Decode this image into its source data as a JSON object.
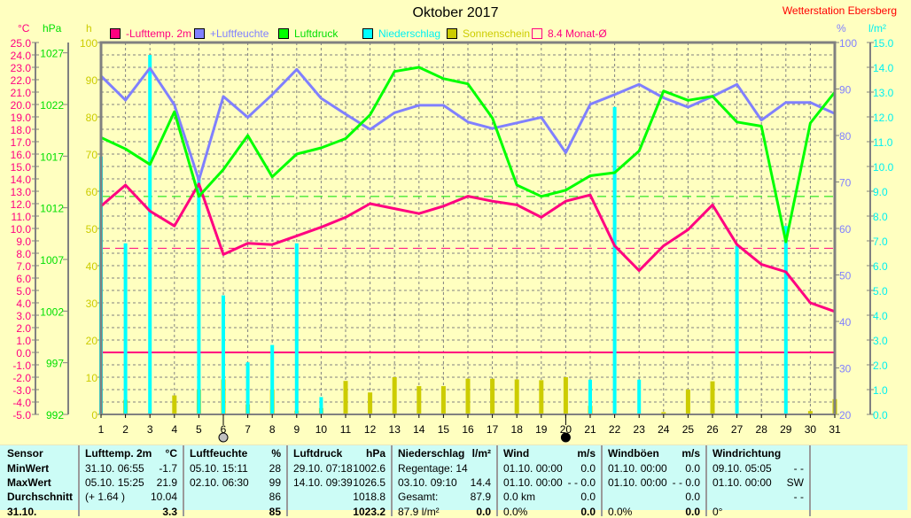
{
  "header": {
    "title": "Oktober 2017",
    "station": "Wetterstation Ebersberg"
  },
  "legend": [
    {
      "label": "-Lufttemp. 2m",
      "color": "#ff0080",
      "box": "#ff0080"
    },
    {
      "label": "+Luftfeuchte",
      "color": "#8080ff",
      "box": "#8080ff"
    },
    {
      "label": "Luftdruck",
      "color": "#00e000",
      "box": "#00ff00"
    },
    {
      "label": "Niederschlag",
      "color": "#00f0f0",
      "box": "#00ffff"
    },
    {
      "label": "Sonnenschein",
      "color": "#cccc00",
      "box": "#cccc00"
    },
    {
      "label": "8.4 Monat-Ø",
      "color": "#ff0080",
      "box": "none"
    }
  ],
  "chart_data": {
    "type": "line",
    "title": "Oktober 2017",
    "x": [
      1,
      2,
      3,
      4,
      5,
      6,
      7,
      8,
      9,
      10,
      11,
      12,
      13,
      14,
      15,
      16,
      17,
      18,
      19,
      20,
      21,
      22,
      23,
      24,
      25,
      26,
      27,
      28,
      29,
      30,
      31
    ],
    "axes": {
      "temp": {
        "label": "°C",
        "range": [
          -5,
          25
        ],
        "ticks": [
          "-5.0",
          "-4.0",
          "-3.0",
          "-2.0",
          "-1.0",
          "0.0",
          "1.0",
          "2.0",
          "3.0",
          "4.0",
          "5.0",
          "6.0",
          "7.0",
          "8.0",
          "9.0",
          "10.0",
          "11.0",
          "12.0",
          "13.0",
          "14.0",
          "15.0",
          "16.0",
          "17.0",
          "18.0",
          "19.0",
          "20.0",
          "21.0",
          "22.0",
          "23.0",
          "24.0",
          "25.0"
        ],
        "color": "#ff0080"
      },
      "pressure": {
        "label": "hPa",
        "range": [
          992,
          1028
        ],
        "ticks": [
          "992",
          "997",
          "1002",
          "1007",
          "1012",
          "1017",
          "1022",
          "1027"
        ],
        "color": "#00e000"
      },
      "sun": {
        "label": "h",
        "range": [
          0,
          100
        ],
        "ticks": [
          "0",
          "10",
          "20",
          "30",
          "40",
          "50",
          "60",
          "70",
          "80",
          "90",
          "100"
        ],
        "color": "#cccc00"
      },
      "humidity": {
        "label": "%",
        "range": [
          20,
          100
        ],
        "ticks": [
          "20",
          "30",
          "40",
          "50",
          "60",
          "70",
          "80",
          "90",
          "100"
        ],
        "color": "#8080ff"
      },
      "rain": {
        "label": "l/m²",
        "range": [
          0,
          15
        ],
        "ticks": [
          "0.0",
          "1.0",
          "2.0",
          "3.0",
          "4.0",
          "5.0",
          "6.0",
          "7.0",
          "8.0",
          "9.0",
          "10.0",
          "11.0",
          "12.0",
          "13.0",
          "14.0",
          "15.0"
        ],
        "color": "#00f0f0"
      }
    },
    "series": [
      {
        "name": "-Lufttemp. 2m",
        "axis": "temp",
        "kind": "line",
        "color": "#ff0080",
        "values": [
          11.8,
          13.5,
          11.4,
          10.2,
          13.6,
          7.9,
          8.8,
          8.7,
          9.4,
          10.1,
          10.9,
          12.0,
          11.6,
          11.2,
          11.8,
          12.6,
          12.2,
          11.9,
          10.9,
          12.2,
          12.7,
          8.6,
          6.6,
          8.6,
          9.9,
          11.9,
          8.7,
          7.1,
          6.5,
          4.0,
          3.3
        ]
      },
      {
        "name": "+Luftfeuchte",
        "axis": "humidity",
        "kind": "line",
        "color": "#8080ff",
        "values": [
          92.8,
          87.6,
          94.5,
          86.6,
          70.4,
          88.4,
          83.9,
          88.8,
          94.2,
          88.0,
          84.6,
          81.3,
          84.9,
          86.5,
          86.5,
          82.9,
          81.5,
          82.7,
          83.9,
          76.3,
          86.7,
          88.8,
          91.0,
          88.1,
          86.1,
          88.4,
          91.0,
          83.3,
          87.1,
          87.1,
          84.7
        ]
      },
      {
        "name": "Luftdruck",
        "axis": "pressure",
        "kind": "line",
        "color": "#00ff00",
        "values": [
          1018.8,
          1017.7,
          1016.2,
          1021.3,
          1013.1,
          1015.7,
          1019.0,
          1015.0,
          1017.2,
          1017.8,
          1018.7,
          1021.0,
          1025.2,
          1025.6,
          1024.5,
          1024.0,
          1020.7,
          1014.2,
          1013.1,
          1013.7,
          1015.1,
          1015.4,
          1017.5,
          1023.3,
          1022.4,
          1022.8,
          1020.3,
          1019.9,
          1008.7,
          1020.2,
          1023.2
        ]
      },
      {
        "name": "Sonnenschein",
        "axis": "sun",
        "kind": "bar",
        "color": "#cccc00",
        "values": [
          0.3,
          3.9,
          0.3,
          5.1,
          6.7,
          9.4,
          2.7,
          6.7,
          1.0,
          1.7,
          9.0,
          5.9,
          10.0,
          7.6,
          7.6,
          9.6,
          9.6,
          9.4,
          9.2,
          10.0,
          2.3,
          0,
          0,
          0.6,
          6.7,
          8.9,
          0,
          0.2,
          0,
          0.9,
          4.1
        ]
      },
      {
        "name": "Niederschlag",
        "axis": "rain",
        "kind": "bar",
        "color": "#00ffff",
        "values": [
          10.4,
          6.9,
          14.5,
          0,
          9.6,
          4.8,
          2.1,
          2.8,
          6.9,
          0.7,
          0,
          0,
          0,
          0,
          0,
          0,
          0,
          0,
          0,
          0,
          1.4,
          12.4,
          1.4,
          0,
          0,
          0,
          6.8,
          0,
          7.6,
          0,
          0
        ]
      }
    ],
    "reference_lines": [
      {
        "name": "Monat-Ø temperature",
        "axis": "temp",
        "value": 8.4,
        "style": "dashed",
        "color": "#ff0080"
      },
      {
        "name": "freezing line",
        "axis": "temp",
        "value": 0.0,
        "style": "solid",
        "color": "#ff0080"
      },
      {
        "name": "standard pressure",
        "axis": "pressure",
        "value": 1013.1,
        "style": "dashed",
        "color": "#00e000"
      }
    ],
    "moon_markers": [
      {
        "day": 6,
        "phase": "full"
      },
      {
        "day": 20,
        "phase": "new"
      }
    ],
    "grid": true
  },
  "stats": {
    "columns": [
      {
        "name": "Sensor",
        "unit": ""
      },
      {
        "name": "Lufttemp. 2m",
        "unit": "°C"
      },
      {
        "name": "Luftfeuchte",
        "unit": "%"
      },
      {
        "name": "Luftdruck",
        "unit": "hPa"
      },
      {
        "name": "Niederschlag",
        "unit": "l/m²"
      },
      {
        "name": "Wind",
        "unit": "m/s"
      },
      {
        "name": "Windböen",
        "unit": "m/s"
      },
      {
        "name": "Windrichtung",
        "unit": ""
      }
    ],
    "rows": [
      {
        "label": "MinWert",
        "cells": [
          [
            "31.10.  06:55",
            "-1.7"
          ],
          [
            "05.10.  15:11",
            "28"
          ],
          [
            "29.10.  07:18",
            "1002.6"
          ],
          [
            "Regentage: 14",
            ""
          ],
          [
            "01.10.  00:00",
            "0.0"
          ],
          [
            "01.10.  00:00",
            "0.0"
          ],
          [
            "09.10.  05:05",
            "- -"
          ]
        ]
      },
      {
        "label": "MaxWert",
        "cells": [
          [
            "05.10.  15:25",
            "21.9"
          ],
          [
            "02.10.  06:30",
            "99"
          ],
          [
            "14.10.  09:39",
            "1026.5"
          ],
          [
            "03.10.  09:10",
            "14.4"
          ],
          [
            "01.10.  00:00",
            "- - 0.0"
          ],
          [
            "01.10.  00:00",
            "- - 0.0"
          ],
          [
            "01.10.  00:00",
            "SW"
          ]
        ]
      },
      {
        "label": "Durchschnitt",
        "cells": [
          [
            "(+ 1.64 )",
            "10.04"
          ],
          [
            "",
            "86"
          ],
          [
            "",
            "1018.8"
          ],
          [
            "Gesamt:",
            "87.9"
          ],
          [
            "0.0 km",
            "0.0"
          ],
          [
            "",
            "0.0"
          ],
          [
            "",
            "- -"
          ]
        ]
      },
      {
        "label": "31.10.",
        "cells": [
          [
            "",
            "3.3"
          ],
          [
            "",
            "85"
          ],
          [
            "",
            "1023.2"
          ],
          [
            "87.9 l/m²",
            "0.0"
          ],
          [
            "0.0%",
            "0.0"
          ],
          [
            "0.0%",
            "0.0"
          ],
          [
            "0°",
            ""
          ]
        ]
      }
    ]
  }
}
